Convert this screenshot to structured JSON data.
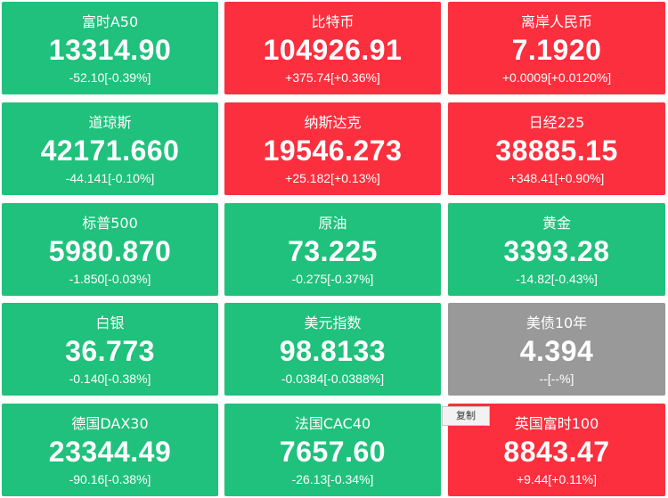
{
  "colors": {
    "down": "#1fc17c",
    "up": "#fb2f3e",
    "flat": "#999999"
  },
  "tiles": [
    {
      "name": "富时A50",
      "price": "13314.90",
      "change": "-52.10[-0.39%]",
      "status": "down"
    },
    {
      "name": "比特币",
      "price": "104926.91",
      "change": "+375.74[+0.36%]",
      "status": "up"
    },
    {
      "name": "离岸人民币",
      "price": "7.1920",
      "change": "+0.0009[+0.0120%]",
      "status": "up"
    },
    {
      "name": "道琼斯",
      "price": "42171.660",
      "change": "-44.141[-0.10%]",
      "status": "down"
    },
    {
      "name": "纳斯达克",
      "price": "19546.273",
      "change": "+25.182[+0.13%]",
      "status": "up"
    },
    {
      "name": "日经225",
      "price": "38885.15",
      "change": "+348.41[+0.90%]",
      "status": "up"
    },
    {
      "name": "标普500",
      "price": "5980.870",
      "change": "-1.850[-0.03%]",
      "status": "down"
    },
    {
      "name": "原油",
      "price": "73.225",
      "change": "-0.275[-0.37%]",
      "status": "down"
    },
    {
      "name": "黄金",
      "price": "3393.28",
      "change": "-14.82[-0.43%]",
      "status": "down"
    },
    {
      "name": "白银",
      "price": "36.773",
      "change": "-0.140[-0.38%]",
      "status": "down"
    },
    {
      "name": "美元指数",
      "price": "98.8133",
      "change": "-0.0384[-0.0388%]",
      "status": "down"
    },
    {
      "name": "美债10年",
      "price": "4.394",
      "change": "--[--%]",
      "status": "flat"
    },
    {
      "name": "德国DAX30",
      "price": "23344.49",
      "change": "-90.16[-0.38%]",
      "status": "down"
    },
    {
      "name": "法国CAC40",
      "price": "7657.60",
      "change": "-26.13[-0.34%]",
      "status": "down"
    },
    {
      "name": "英国富时100",
      "price": "8843.47",
      "change": "+9.44[+0.11%]",
      "status": "up"
    }
  ],
  "context_menu": {
    "copy_label": "复制"
  }
}
